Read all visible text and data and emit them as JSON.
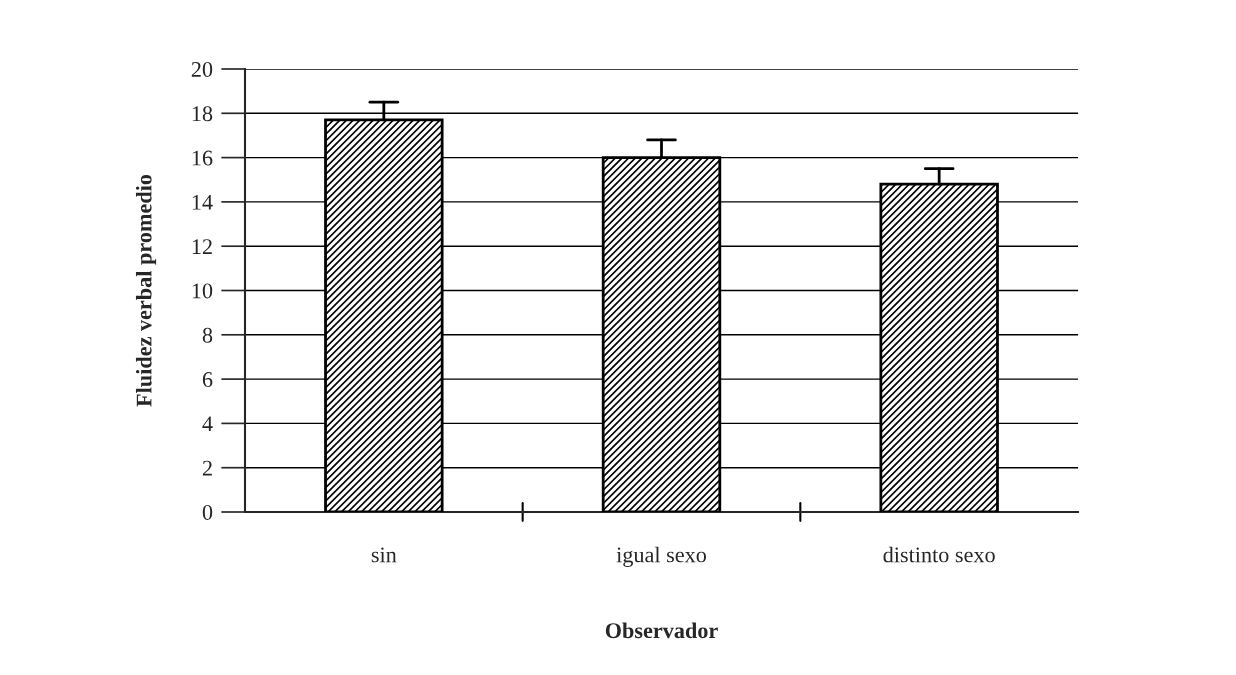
{
  "chart_data": {
    "type": "bar",
    "categories": [
      "sin",
      "igual sexo",
      "distinto sexo"
    ],
    "values": [
      17.7,
      16.0,
      14.8
    ],
    "errors": [
      [
        17.7,
        18.5
      ],
      [
        16.0,
        16.8
      ],
      [
        14.8,
        15.5
      ]
    ],
    "color": "#000000",
    "xlabel": "Observador",
    "ylabel": "Fluidez verbal promedio",
    "ylim": [
      0,
      20
    ],
    "yticks": [
      0,
      2,
      4,
      6,
      8,
      10,
      12,
      14,
      16,
      18,
      20
    ],
    "grid": "y",
    "legend": false
  }
}
